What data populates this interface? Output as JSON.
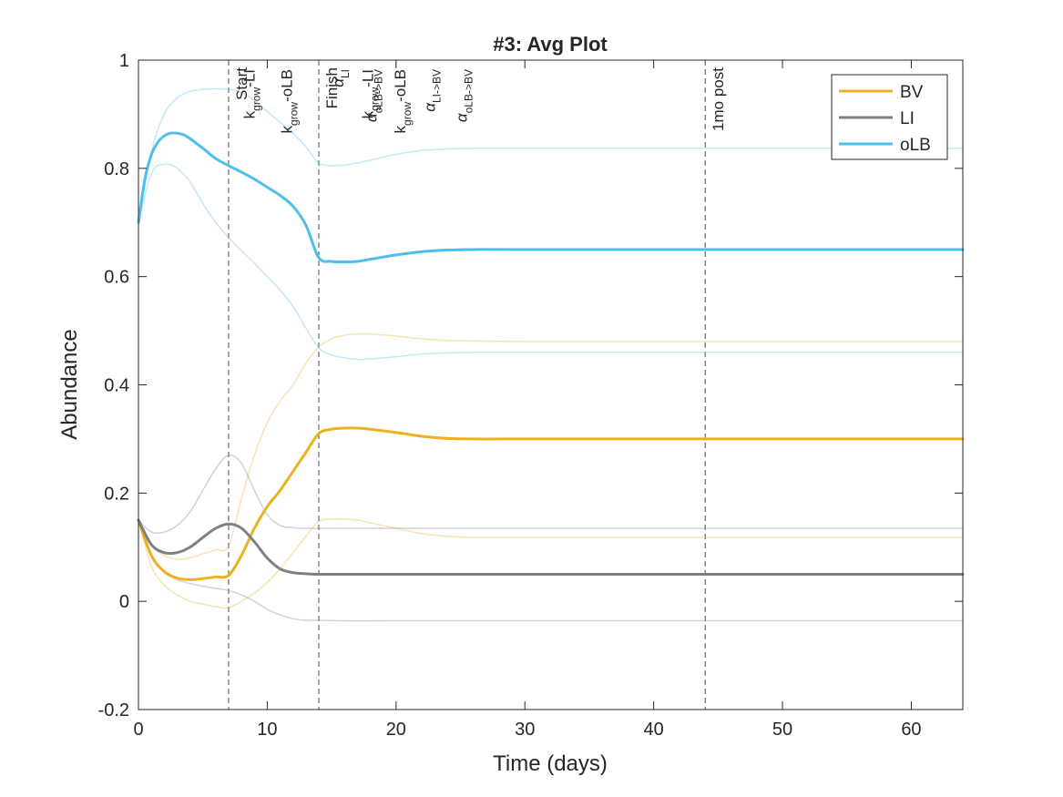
{
  "chart_data": {
    "type": "line",
    "title": "#3: Avg Plot",
    "xlabel": "Time (days)",
    "ylabel": "Abundance",
    "xlim": [
      0,
      64
    ],
    "ylim": [
      -0.2,
      1
    ],
    "xticks": [
      0,
      10,
      20,
      30,
      40,
      50,
      60
    ],
    "xtick_labels": [
      "0",
      "10",
      "20",
      "30",
      "40",
      "50",
      "60"
    ],
    "yticks": [
      -0.2,
      0,
      0.2,
      0.4,
      0.6,
      0.8,
      1
    ],
    "ytick_labels": [
      "-0.2",
      "0",
      "0.2",
      "0.4",
      "0.6",
      "0.8",
      "1"
    ],
    "grid": false,
    "legend": {
      "position": "top-right",
      "entries": [
        {
          "name": "BV",
          "color": "#EDB120"
        },
        {
          "name": "LI",
          "color": "#808080"
        },
        {
          "name": "oLB",
          "color": "#4DBEEE"
        }
      ]
    },
    "series": [
      {
        "name": "BV",
        "color": "#EDB120",
        "role": "mean",
        "x": [
          0,
          1,
          2,
          3,
          4,
          5,
          6,
          7,
          8,
          9,
          10,
          11,
          12,
          13,
          14,
          15,
          16,
          17,
          18,
          20,
          22,
          24,
          26,
          28,
          30,
          35,
          40,
          50,
          64
        ],
        "y": [
          0.15,
          0.085,
          0.055,
          0.043,
          0.04,
          0.042,
          0.045,
          0.048,
          0.085,
          0.135,
          0.175,
          0.205,
          0.24,
          0.275,
          0.31,
          0.318,
          0.32,
          0.32,
          0.318,
          0.312,
          0.305,
          0.301,
          0.3,
          0.3,
          0.3,
          0.3,
          0.3,
          0.3,
          0.3
        ]
      },
      {
        "color": "#EDB120",
        "role": "upper",
        "x": [
          0,
          1,
          2,
          3,
          4,
          5,
          6,
          7,
          8,
          9,
          10,
          11,
          12,
          13,
          14,
          15,
          16,
          17,
          18,
          20,
          22,
          24,
          26,
          30,
          40,
          64
        ],
        "y": [
          0.15,
          0.105,
          0.085,
          0.078,
          0.08,
          0.088,
          0.095,
          0.102,
          0.19,
          0.27,
          0.33,
          0.37,
          0.4,
          0.44,
          0.47,
          0.485,
          0.492,
          0.494,
          0.494,
          0.49,
          0.485,
          0.482,
          0.481,
          0.48,
          0.48,
          0.48
        ]
      },
      {
        "color": "#EDB120",
        "role": "lower",
        "x": [
          0,
          1,
          2,
          3,
          4,
          5,
          6,
          7,
          8,
          9,
          10,
          11,
          12,
          13,
          14,
          15,
          16,
          17,
          18,
          20,
          22,
          24,
          26,
          30,
          40,
          64
        ],
        "y": [
          0.15,
          0.065,
          0.03,
          0.012,
          0.0,
          -0.005,
          -0.01,
          -0.012,
          0.0,
          0.015,
          0.035,
          0.06,
          0.09,
          0.12,
          0.148,
          0.152,
          0.152,
          0.15,
          0.145,
          0.135,
          0.125,
          0.12,
          0.118,
          0.118,
          0.118,
          0.118
        ]
      },
      {
        "name": "LI",
        "color": "#808080",
        "role": "mean",
        "x": [
          0,
          1,
          2,
          3,
          4,
          5,
          6,
          7,
          8,
          9,
          10,
          11,
          12,
          13,
          14,
          16,
          20,
          30,
          40,
          64
        ],
        "y": [
          0.15,
          0.105,
          0.09,
          0.09,
          0.1,
          0.118,
          0.135,
          0.143,
          0.135,
          0.11,
          0.08,
          0.06,
          0.053,
          0.051,
          0.05,
          0.05,
          0.05,
          0.05,
          0.05,
          0.05
        ]
      },
      {
        "color": "#808080",
        "role": "upper",
        "x": [
          0,
          1,
          2,
          3,
          4,
          5,
          6,
          7,
          8,
          9,
          10,
          11,
          12,
          13,
          14,
          16,
          20,
          30,
          40,
          64
        ],
        "y": [
          0.15,
          0.128,
          0.128,
          0.14,
          0.165,
          0.205,
          0.245,
          0.27,
          0.255,
          0.205,
          0.16,
          0.14,
          0.136,
          0.135,
          0.135,
          0.135,
          0.135,
          0.135,
          0.135,
          0.135
        ]
      },
      {
        "color": "#808080",
        "role": "lower",
        "x": [
          0,
          1,
          2,
          3,
          4,
          5,
          6,
          7,
          8,
          9,
          10,
          11,
          12,
          13,
          14,
          16,
          20,
          30,
          40,
          64
        ],
        "y": [
          0.15,
          0.082,
          0.055,
          0.04,
          0.033,
          0.028,
          0.024,
          0.02,
          0.012,
          0.0,
          -0.015,
          -0.025,
          -0.032,
          -0.035,
          -0.035,
          -0.036,
          -0.036,
          -0.036,
          -0.036,
          -0.036
        ]
      },
      {
        "name": "oLB",
        "color": "#4DBEEE",
        "role": "mean",
        "x": [
          0,
          0.5,
          1,
          1.5,
          2,
          2.5,
          3,
          3.5,
          4,
          5,
          6,
          7,
          8,
          9,
          10,
          11,
          12,
          13,
          14,
          15,
          16,
          17,
          18,
          20,
          22,
          24,
          26,
          30,
          40,
          64
        ],
        "y": [
          0.7,
          0.78,
          0.825,
          0.848,
          0.86,
          0.865,
          0.865,
          0.862,
          0.855,
          0.837,
          0.818,
          0.805,
          0.793,
          0.78,
          0.765,
          0.75,
          0.73,
          0.695,
          0.635,
          0.628,
          0.627,
          0.628,
          0.632,
          0.64,
          0.646,
          0.649,
          0.65,
          0.65,
          0.65,
          0.65
        ]
      },
      {
        "color": "#4DBEEE",
        "role": "upper",
        "x": [
          0,
          1,
          2,
          3,
          4,
          5,
          6,
          7,
          8,
          9,
          10,
          11,
          12,
          13,
          14,
          15,
          16,
          17,
          18,
          20,
          22,
          24,
          26,
          30,
          40,
          64
        ],
        "y": [
          0.7,
          0.83,
          0.9,
          0.93,
          0.942,
          0.946,
          0.947,
          0.946,
          0.94,
          0.925,
          0.905,
          0.885,
          0.865,
          0.84,
          0.81,
          0.805,
          0.806,
          0.81,
          0.815,
          0.826,
          0.833,
          0.836,
          0.837,
          0.837,
          0.837,
          0.837
        ]
      },
      {
        "color": "#4DBEEE",
        "role": "lower",
        "x": [
          0,
          1,
          2,
          3,
          4,
          5,
          6,
          7,
          8,
          9,
          10,
          11,
          12,
          13,
          14,
          15,
          16,
          17,
          18,
          20,
          22,
          24,
          26,
          30,
          40,
          64
        ],
        "y": [
          0.7,
          0.79,
          0.808,
          0.8,
          0.775,
          0.735,
          0.7,
          0.672,
          0.648,
          0.625,
          0.6,
          0.575,
          0.545,
          0.505,
          0.468,
          0.455,
          0.45,
          0.447,
          0.448,
          0.452,
          0.457,
          0.459,
          0.46,
          0.46,
          0.46,
          0.46
        ]
      }
    ],
    "vlines": [
      {
        "x": 7,
        "labels": [
          "Start"
        ]
      },
      {
        "x": 14,
        "labels": [
          "Finish"
        ]
      },
      {
        "x": 44,
        "labels": [
          "1mo post"
        ]
      }
    ],
    "annotations": [
      {
        "x": 8.3,
        "main": "k",
        "sub": "grow",
        "suffix": "-LI"
      },
      {
        "x": 11.2,
        "main": "k",
        "sub": "grow",
        "suffix": "-oLB"
      },
      {
        "x": 15.2,
        "main": "α",
        "sub": "LI",
        "suffix": ""
      },
      {
        "x": 17.5,
        "main": "k",
        "sub": "grow",
        "suffix": "-LI"
      },
      {
        "x": 17.8,
        "main": "α",
        "sub": "oLB->BV",
        "suffix": ""
      },
      {
        "x": 20.0,
        "main": "k",
        "sub": "grow",
        "suffix": "-oLB"
      },
      {
        "x": 22.3,
        "main": "α",
        "sub": "LI->BV",
        "suffix": ""
      },
      {
        "x": 24.8,
        "main": "α",
        "sub": "oLB->BV",
        "suffix": ""
      }
    ]
  }
}
